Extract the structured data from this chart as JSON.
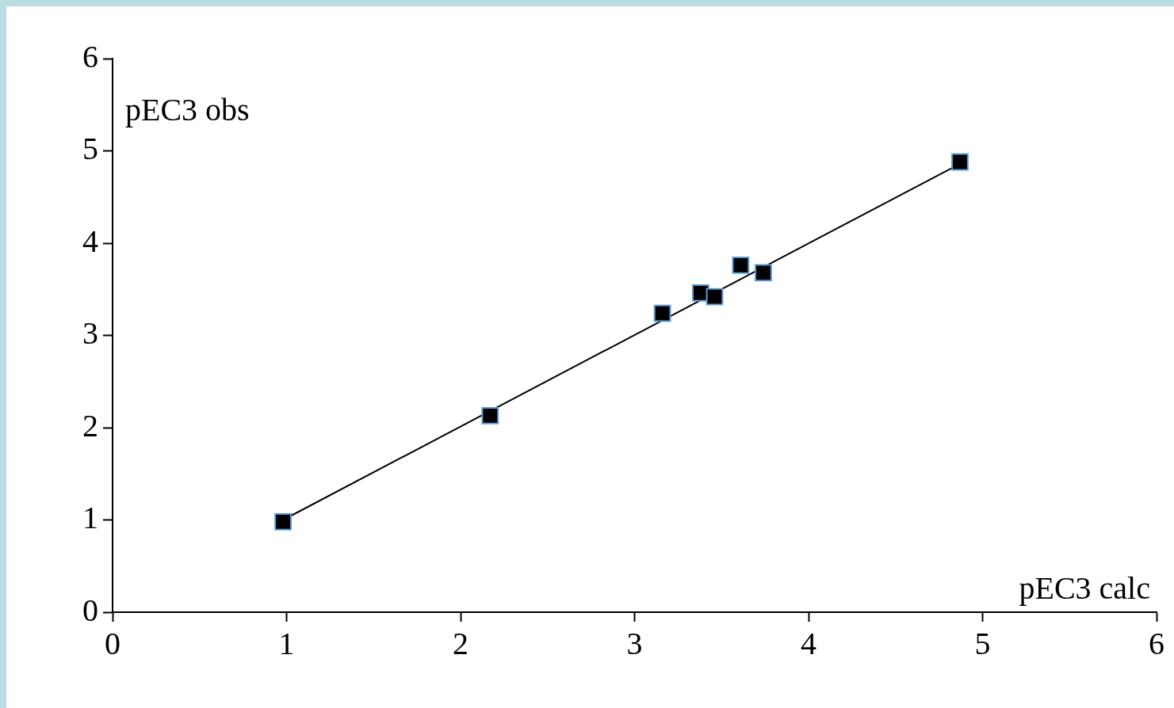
{
  "chart_data": {
    "type": "scatter",
    "xlabel": "pEC3 calc",
    "ylabel": "pEC3 obs",
    "marker": "square",
    "legend": false,
    "grid": false,
    "xlim": [
      0,
      6
    ],
    "ylim": [
      0,
      6
    ],
    "xticks": [
      0,
      1,
      2,
      3,
      4,
      5,
      6
    ],
    "yticks": [
      0,
      1,
      2,
      3,
      4,
      5,
      6
    ],
    "series": [
      {
        "color": "#000000",
        "x": [
          0.98,
          2.17,
          3.16,
          3.38,
          3.46,
          3.61,
          3.74,
          4.87
        ],
        "values": [
          0.98,
          2.13,
          3.24,
          3.46,
          3.42,
          3.76,
          3.68,
          4.88
        ]
      },
      {
        "type": "line",
        "color": "#000000",
        "marker": "none",
        "x": [
          0.98,
          4.87
        ],
        "values": [
          1.0,
          4.86
        ]
      }
    ]
  }
}
